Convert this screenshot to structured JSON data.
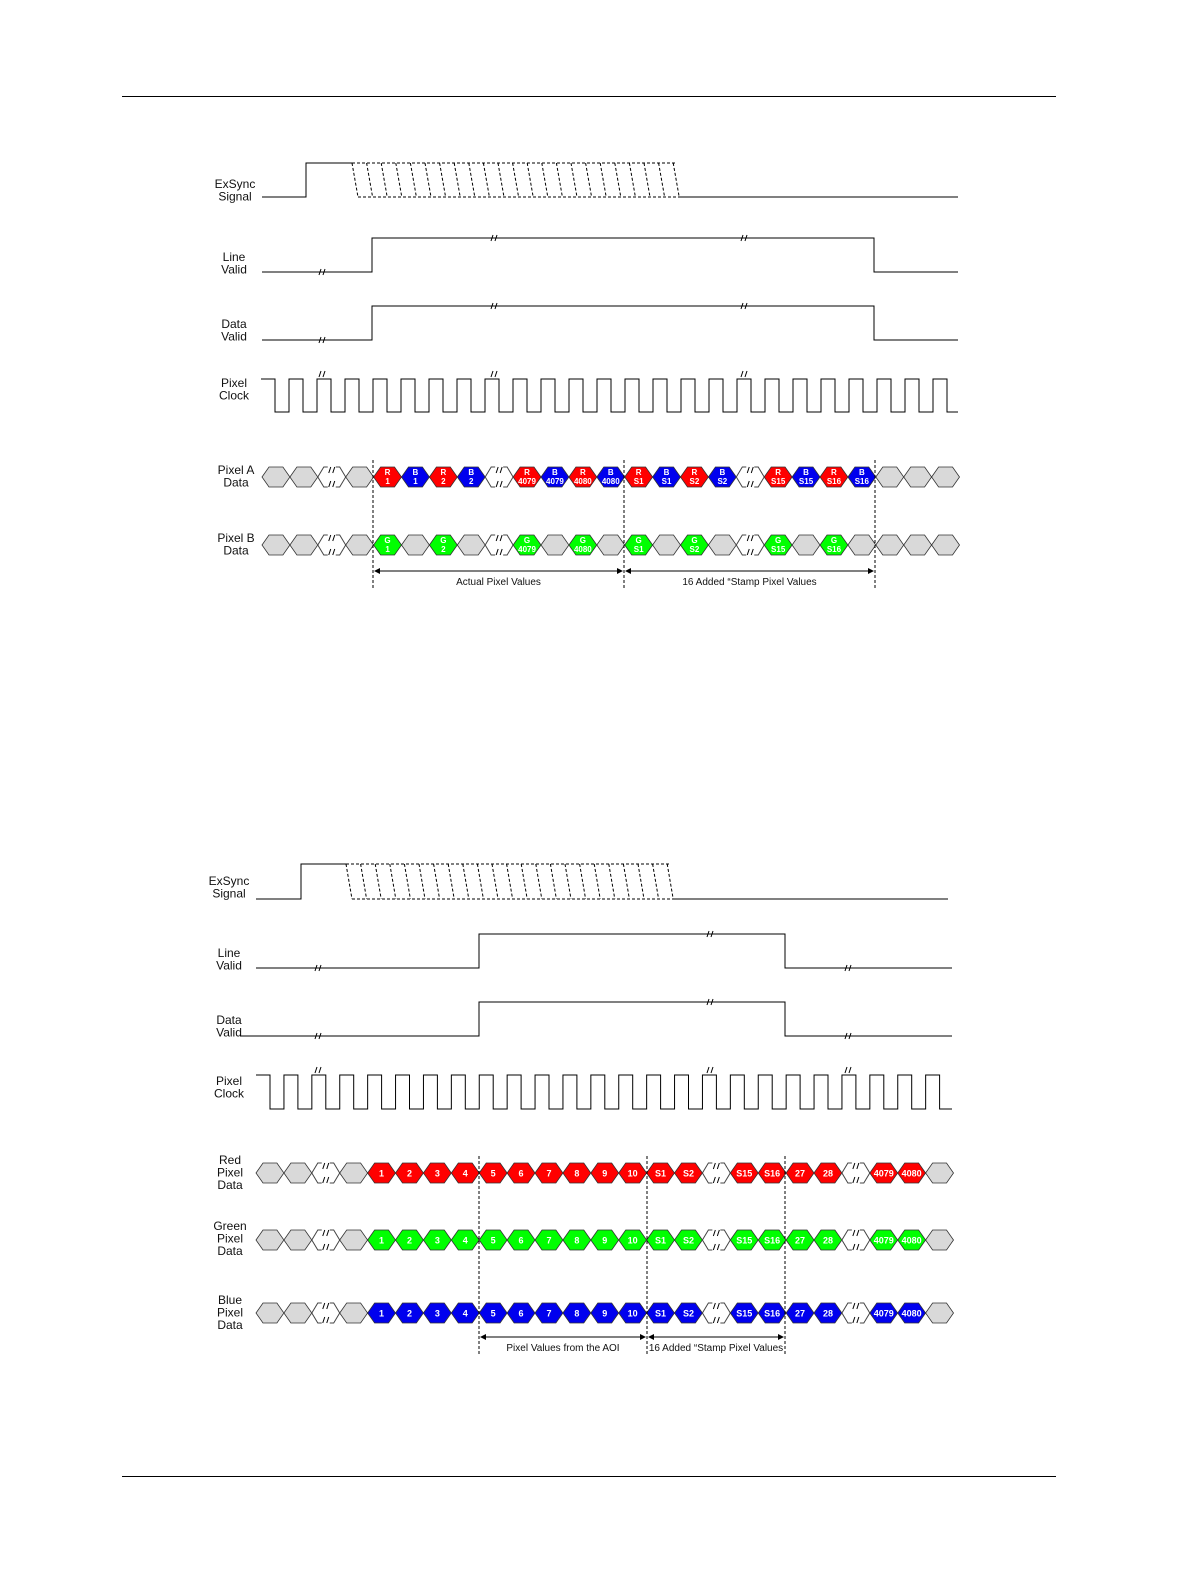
{
  "colors": {
    "red": "#ff0000",
    "green": "#00ff00",
    "blue": "#0000ee",
    "idle": "#d9d9d9",
    "line": "#000000"
  },
  "diagram1": {
    "labels": {
      "exsync": [
        "ExSync",
        "Signal"
      ],
      "line_valid": [
        "Line",
        "Valid"
      ],
      "data_valid": [
        "Data",
        "Valid"
      ],
      "pixel_clock": [
        "Pixel",
        "Clock"
      ],
      "pixel_a": [
        "Pixel A",
        "Data"
      ],
      "pixel_b": [
        "Pixel B",
        "Data"
      ]
    },
    "pixel_a_cells": [
      {
        "t": "idle"
      },
      {
        "t": "idle"
      },
      {
        "t": "break"
      },
      {
        "t": "idle"
      },
      {
        "t": "red",
        "l1": "R",
        "l2": "1"
      },
      {
        "t": "blue",
        "l1": "B",
        "l2": "1"
      },
      {
        "t": "red",
        "l1": "R",
        "l2": "2"
      },
      {
        "t": "blue",
        "l1": "B",
        "l2": "2"
      },
      {
        "t": "break"
      },
      {
        "t": "red",
        "l1": "R",
        "l2": "4079"
      },
      {
        "t": "blue",
        "l1": "B",
        "l2": "4079"
      },
      {
        "t": "red",
        "l1": "R",
        "l2": "4080"
      },
      {
        "t": "blue",
        "l1": "B",
        "l2": "4080"
      },
      {
        "t": "red",
        "l1": "R",
        "l2": "S1"
      },
      {
        "t": "blue",
        "l1": "B",
        "l2": "S1"
      },
      {
        "t": "red",
        "l1": "R",
        "l2": "S2"
      },
      {
        "t": "blue",
        "l1": "B",
        "l2": "S2"
      },
      {
        "t": "break"
      },
      {
        "t": "red",
        "l1": "R",
        "l2": "S15"
      },
      {
        "t": "blue",
        "l1": "B",
        "l2": "S15"
      },
      {
        "t": "red",
        "l1": "R",
        "l2": "S16"
      },
      {
        "t": "blue",
        "l1": "B",
        "l2": "S16"
      },
      {
        "t": "idle"
      },
      {
        "t": "idle"
      },
      {
        "t": "idle"
      }
    ],
    "pixel_b_cells": [
      {
        "t": "idle"
      },
      {
        "t": "idle"
      },
      {
        "t": "break"
      },
      {
        "t": "idle"
      },
      {
        "t": "green",
        "l1": "G",
        "l2": "1"
      },
      {
        "t": "idle"
      },
      {
        "t": "green",
        "l1": "G",
        "l2": "2"
      },
      {
        "t": "idle"
      },
      {
        "t": "break"
      },
      {
        "t": "green",
        "l1": "G",
        "l2": "4079"
      },
      {
        "t": "idle"
      },
      {
        "t": "green",
        "l1": "G",
        "l2": "4080"
      },
      {
        "t": "idle"
      },
      {
        "t": "green",
        "l1": "G",
        "l2": "S1"
      },
      {
        "t": "idle"
      },
      {
        "t": "green",
        "l1": "G",
        "l2": "S2"
      },
      {
        "t": "idle"
      },
      {
        "t": "break"
      },
      {
        "t": "green",
        "l1": "G",
        "l2": "S15"
      },
      {
        "t": "idle"
      },
      {
        "t": "green",
        "l1": "G",
        "l2": "S16"
      },
      {
        "t": "idle"
      },
      {
        "t": "idle"
      },
      {
        "t": "idle"
      },
      {
        "t": "idle"
      }
    ],
    "annotations": [
      "Actual Pixel Values",
      "16 Added “Stamp Pixel Values"
    ]
  },
  "diagram2": {
    "labels": {
      "exsync": [
        "ExSync",
        "Signal"
      ],
      "line_valid": [
        "Line",
        "Valid"
      ],
      "data_valid": [
        "Data",
        "Valid"
      ],
      "pixel_clock": [
        "Pixel",
        "Clock"
      ],
      "red": [
        "Red",
        "Pixel",
        "Data"
      ],
      "green": [
        "Green",
        "Pixel",
        "Data"
      ],
      "blue": [
        "Blue",
        "Pixel",
        "Data"
      ]
    },
    "sequence": [
      "idle",
      "idle",
      "break",
      "idle",
      "1",
      "2",
      "3",
      "4",
      "5",
      "6",
      "7",
      "8",
      "9",
      "10",
      "S1",
      "S2",
      "break",
      "S15",
      "S16",
      "27",
      "28",
      "break",
      "4079",
      "4080",
      "idle"
    ],
    "annotations": [
      "Pixel Values from the AOI",
      "16 Added “Stamp Pixel Values"
    ]
  }
}
